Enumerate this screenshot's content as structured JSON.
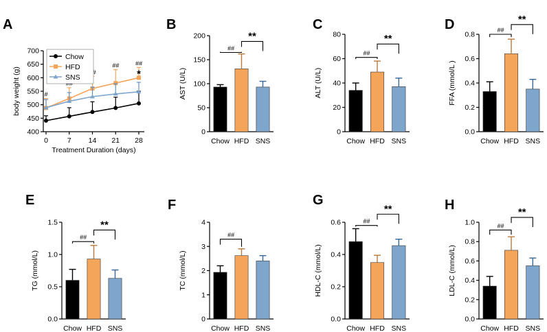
{
  "figure": {
    "note": "multi-panel figure"
  },
  "legend_labels": [
    "Chow",
    "HFD",
    "SNS"
  ],
  "colors": {
    "Chow": "#000000",
    "HFD": "#f5a55a",
    "SNS": "#7ea6cc",
    "axis": "#000000"
  },
  "chart_data": [
    {
      "id": "A",
      "type": "line",
      "letter": "A",
      "title": "",
      "xlabel": "Treatment Duration (days)",
      "ylabel": "body weight (g)",
      "x": [
        0,
        7,
        14,
        21,
        28
      ],
      "xticks": [
        "0",
        "7",
        "14",
        "21",
        "28"
      ],
      "ylim": [
        400,
        700
      ],
      "yticks": [
        "400",
        "450",
        "500",
        "550",
        "600",
        "650",
        "700"
      ],
      "legend": [
        "Chow",
        "HFD",
        "SNS"
      ],
      "legend_position": "top-left",
      "series": [
        {
          "name": "Chow",
          "values": [
            441,
            457,
            473,
            488,
            505
          ],
          "err": [
            18,
            32,
            38,
            40,
            45
          ]
        },
        {
          "name": "HFD",
          "values": [
            488,
            523,
            560,
            580,
            600
          ],
          "err": [
            35,
            40,
            45,
            50,
            38
          ]
        },
        {
          "name": "SNS",
          "values": [
            489,
            513,
            530,
            540,
            548
          ],
          "err": [
            30,
            32,
            35,
            38,
            35
          ]
        }
      ],
      "annotations": [
        {
          "x": 0,
          "text": "#"
        },
        {
          "x": 7,
          "text": "##"
        },
        {
          "x": 14,
          "text": "##"
        },
        {
          "x": 21,
          "text": "##"
        },
        {
          "x": 28,
          "text": "##"
        },
        {
          "x": 28,
          "text": "*"
        }
      ]
    },
    {
      "id": "B",
      "type": "bar",
      "letter": "B",
      "ylabel": "AST (U/L)",
      "categories": [
        "Chow",
        "HFD",
        "SNS"
      ],
      "values": [
        93,
        131,
        93
      ],
      "err": [
        5,
        31,
        12
      ],
      "ylim": [
        0,
        200
      ],
      "yticks": [
        "0",
        "50",
        "100",
        "150",
        "200"
      ],
      "annotations": [
        {
          "from": "Chow",
          "to": "HFD",
          "text": "##",
          "at": 165
        },
        {
          "from": "HFD",
          "to": "SNS",
          "text": "**",
          "at": 188
        }
      ]
    },
    {
      "id": "C",
      "type": "bar",
      "letter": "C",
      "ylabel": "ALT (U/L)",
      "categories": [
        "Chow",
        "HFD",
        "SNS"
      ],
      "values": [
        34,
        49,
        37
      ],
      "err": [
        6,
        9,
        7
      ],
      "ylim": [
        0,
        80
      ],
      "yticks": [
        "0",
        "20",
        "40",
        "60",
        "80"
      ],
      "annotations": [
        {
          "from": "Chow",
          "to": "HFD",
          "text": "##",
          "at": 61
        },
        {
          "from": "HFD",
          "to": "SNS",
          "text": "**",
          "at": 72
        }
      ]
    },
    {
      "id": "D",
      "type": "bar",
      "letter": "D",
      "ylabel": "FFA (mmol/L )",
      "categories": [
        "Chow",
        "HFD",
        "SNS"
      ],
      "values": [
        0.33,
        0.64,
        0.35
      ],
      "err": [
        0.08,
        0.12,
        0.08
      ],
      "ylim": [
        0,
        0.8
      ],
      "yticks": [
        "0.0",
        "0.2",
        "0.4",
        "0.6",
        "0.8"
      ],
      "annotations": [
        {
          "from": "Chow",
          "to": "HFD",
          "text": "##",
          "at": 0.8
        },
        {
          "from": "HFD",
          "to": "SNS",
          "text": "**",
          "at": 0.88
        }
      ]
    },
    {
      "id": "E",
      "type": "bar",
      "letter": "E",
      "ylabel": "TG (mmol/L)",
      "categories": [
        "Chow",
        "HFD",
        "SNS"
      ],
      "values": [
        0.6,
        0.93,
        0.63
      ],
      "err": [
        0.17,
        0.21,
        0.13
      ],
      "ylim": [
        0,
        1.5
      ],
      "yticks": [
        "0.0",
        "0.5",
        "1.0",
        "1.5"
      ],
      "annotations": [
        {
          "from": "Chow",
          "to": "HFD",
          "text": "##",
          "at": 1.2
        },
        {
          "from": "HFD",
          "to": "SNS",
          "text": "**",
          "at": 1.38
        }
      ]
    },
    {
      "id": "F",
      "type": "bar",
      "letter": "F",
      "ylabel": "TC (mmol/L)",
      "categories": [
        "Chow",
        "HFD",
        "SNS"
      ],
      "values": [
        1.93,
        2.62,
        2.4
      ],
      "err": [
        0.27,
        0.28,
        0.22
      ],
      "ylim": [
        0,
        4
      ],
      "yticks": [
        "0",
        "1",
        "2",
        "3",
        "4"
      ],
      "annotations": [
        {
          "from": "Chow",
          "to": "HFD",
          "text": "##",
          "at": 3.3
        }
      ]
    },
    {
      "id": "G",
      "type": "bar",
      "letter": "G",
      "ylabel": "HDL-C (mmol/L)",
      "categories": [
        "Chow",
        "HFD",
        "SNS"
      ],
      "values": [
        0.48,
        0.35,
        0.455
      ],
      "err": [
        0.08,
        0.045,
        0.04
      ],
      "ylim": [
        0,
        0.6
      ],
      "yticks": [
        "0.0",
        "0.2",
        "0.4",
        "0.6"
      ],
      "annotations": [
        {
          "from": "Chow",
          "to": "HFD",
          "text": "##",
          "at": 0.58
        },
        {
          "from": "HFD",
          "to": "SNS",
          "text": "**",
          "at": 0.65
        }
      ]
    },
    {
      "id": "H",
      "type": "bar",
      "letter": "H",
      "ylabel": "LDL-C (mmol/L)",
      "categories": [
        "Chow",
        "HFD",
        "SNS"
      ],
      "values": [
        0.34,
        0.71,
        0.55
      ],
      "err": [
        0.1,
        0.14,
        0.08
      ],
      "ylim": [
        0,
        1.0
      ],
      "yticks": [
        "0.0",
        "0.2",
        "0.4",
        "0.6",
        "0.8",
        "1.0"
      ],
      "annotations": [
        {
          "from": "Chow",
          "to": "HFD",
          "text": "##",
          "at": 0.92
        },
        {
          "from": "HFD",
          "to": "SNS",
          "text": "**",
          "at": 1.05
        }
      ]
    }
  ]
}
